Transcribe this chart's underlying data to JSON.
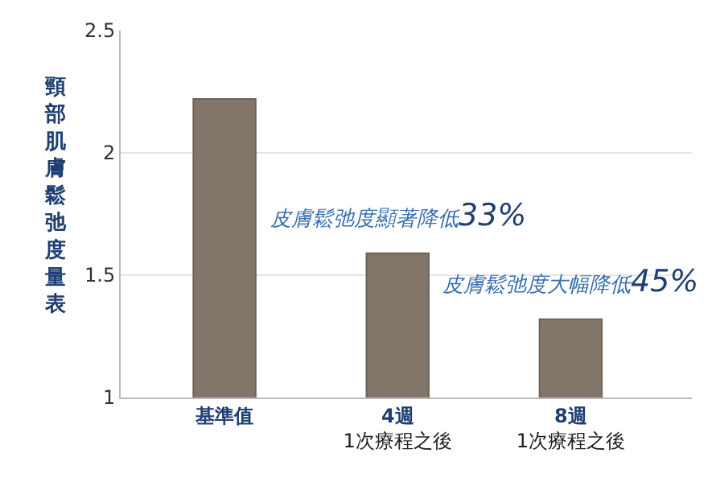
{
  "chart_data": {
    "type": "bar",
    "ylabel": "頸部肌膚鬆弛度量表",
    "categories": [
      "基準值",
      "4週\n1次療程之後",
      "8週\n1次療程之後"
    ],
    "values": [
      2.22,
      1.59,
      1.32
    ],
    "color": "#82766a",
    "ylim": [
      1,
      2.5
    ],
    "yticks": [
      1,
      1.5,
      2,
      2.5
    ],
    "grid": "y",
    "legend": false,
    "annotations": [
      {
        "text": "皮膚鬆弛度顯著降低33%",
        "x": "4週\n1次療程之後",
        "y": 1.59
      },
      {
        "text": "皮膚鬆弛度大幅降低45%",
        "x": "8週\n1次療程之後",
        "y": 1.32
      }
    ]
  }
}
